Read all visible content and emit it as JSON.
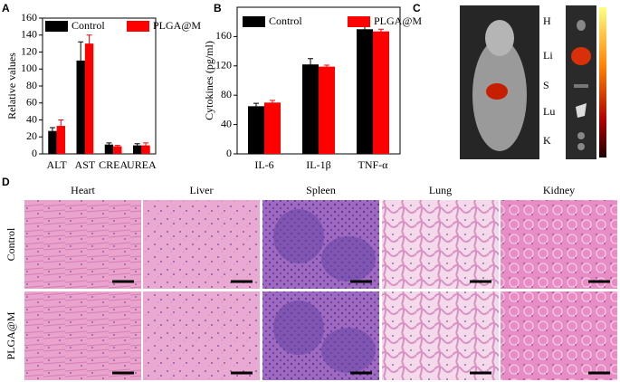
{
  "chart_data": [
    {
      "type": "bar",
      "y_label": "Relative values",
      "categories": [
        "ALT",
        "AST",
        "CREA",
        "UREA"
      ],
      "series": [
        {
          "name": "Control",
          "color": "#000000",
          "values": [
            27,
            110,
            11,
            10
          ],
          "errors": [
            4,
            22,
            2,
            2
          ]
        },
        {
          "name": "PLGA@M",
          "color": "#ff0000",
          "values": [
            33,
            130,
            9,
            10
          ],
          "errors": [
            7,
            10,
            1,
            3
          ]
        }
      ],
      "ylim": [
        0,
        160
      ],
      "yticks": [
        0,
        20,
        40,
        60,
        80,
        100,
        120,
        140,
        160
      ],
      "legend": "top"
    },
    {
      "type": "bar",
      "y_label": "Cytokines (pg/ml)",
      "categories": [
        "IL-6",
        "IL-1β",
        "TNF-α"
      ],
      "series": [
        {
          "name": "Control",
          "color": "#000000",
          "values": [
            65,
            122,
            170
          ],
          "errors": [
            4,
            8,
            9
          ]
        },
        {
          "name": "PLGA@M",
          "color": "#ff0000",
          "values": [
            70,
            119,
            167
          ],
          "errors": [
            3,
            2,
            3
          ]
        }
      ],
      "ylim": [
        0,
        200
      ],
      "yticks": [
        0,
        40,
        80,
        120,
        160
      ],
      "legend": "top"
    }
  ],
  "panel_labels": [
    "A",
    "B",
    "C",
    "D"
  ],
  "imaging": {
    "organs": [
      "H",
      "Li",
      "S",
      "Lu",
      "K"
    ]
  },
  "histology": {
    "columns": [
      "Heart",
      "Liver",
      "Spleen",
      "Lung",
      "Kidney"
    ],
    "rows": [
      "Control",
      "PLGA@M"
    ]
  }
}
